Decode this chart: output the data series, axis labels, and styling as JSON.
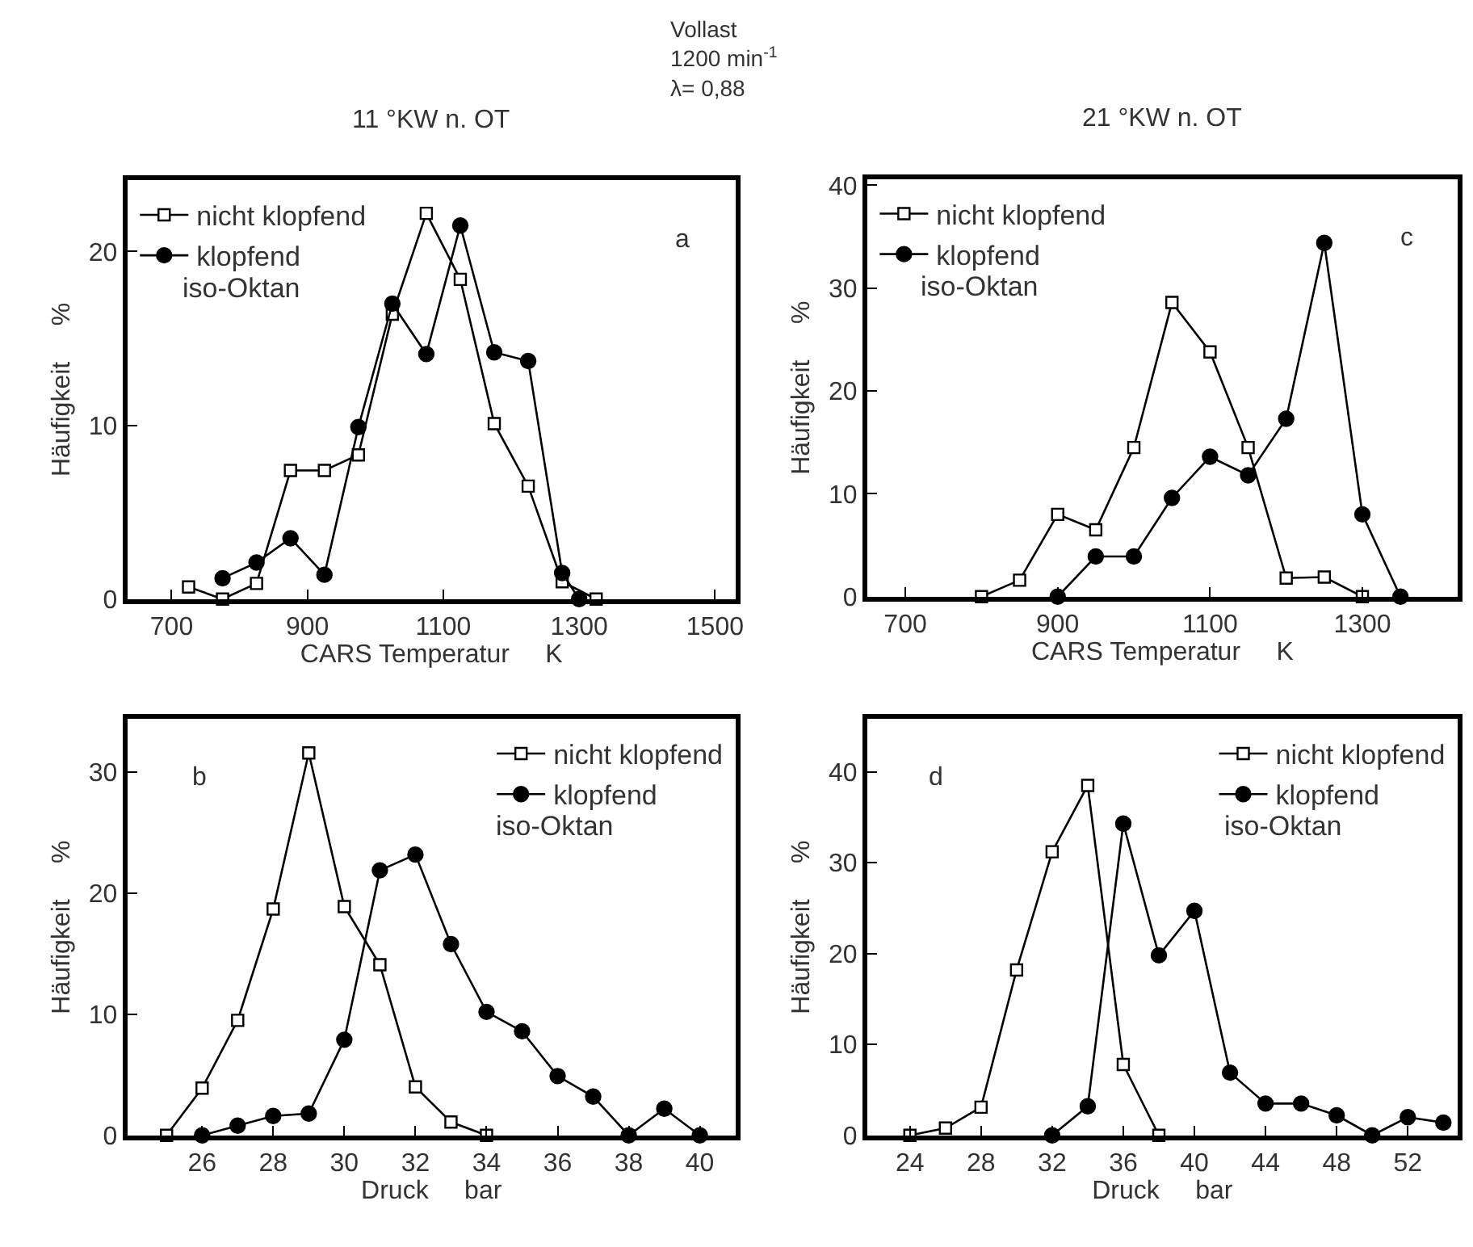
{
  "chart_data": [
    {
      "type": "line",
      "title": "11 °KW n. OT",
      "xlabel": "CARS Temperatur     K",
      "ylabel": "Häufigkeit     %",
      "legend": "top left",
      "annotations": [
        "a",
        "iso-Oktan",
        "Vollast\n1200 min$^{-1}$\nλ= 0,88"
      ],
      "xlim": [
        635,
        1530
      ],
      "ylim": [
        0,
        24.1
      ],
      "xticks": [
        700,
        900,
        1100,
        1300,
        1500
      ],
      "yticks": [
        0,
        10,
        20
      ],
      "series": [
        {
          "name": "nicht klopfend",
          "color": "#000000",
          "marker": "square",
          "x": [
            725,
            775,
            825,
            875,
            925,
            975,
            1025,
            1075,
            1125,
            1175,
            1225,
            1275,
            1325
          ],
          "values": [
            0.7,
            0,
            0.9,
            7.4,
            7.4,
            8.3,
            16.4,
            22.2,
            18.4,
            10.1,
            6.5,
            1.0,
            0
          ]
        },
        {
          "name": "klopfend",
          "color": "#000000",
          "marker": "circle",
          "x": [
            775,
            825,
            875,
            925,
            975,
            1025,
            1075,
            1125,
            1175,
            1225,
            1275,
            1300
          ],
          "values": [
            1.2,
            2.1,
            3.5,
            1.4,
            9.9,
            17.0,
            14.1,
            21.5,
            14.2,
            13.7,
            1.5,
            0
          ]
        }
      ]
    },
    {
      "type": "line",
      "title": "21 °KW n. OT",
      "xlabel": "CARS Temperatur     K",
      "ylabel": "Häufigkeit     %",
      "legend": "top left",
      "annotations": [
        "c",
        "iso-Oktan"
      ],
      "xlim": [
        650,
        1425
      ],
      "ylim": [
        0,
        40.6
      ],
      "xticks": [
        700,
        900,
        1100,
        1300
      ],
      "yticks": [
        0,
        10,
        20,
        30,
        40
      ],
      "series": [
        {
          "name": "nicht klopfend",
          "color": "#000000",
          "marker": "square",
          "x": [
            800,
            850,
            900,
            950,
            1000,
            1050,
            1100,
            1150,
            1200,
            1250,
            1300
          ],
          "values": [
            0,
            1.6,
            8.0,
            6.5,
            14.5,
            28.6,
            23.8,
            14.5,
            1.8,
            1.9,
            0
          ]
        },
        {
          "name": "klopfend",
          "color": "#000000",
          "marker": "circle",
          "x": [
            900,
            950,
            1000,
            1050,
            1100,
            1150,
            1200,
            1250,
            1300,
            1350
          ],
          "values": [
            0,
            3.9,
            3.9,
            9.6,
            13.6,
            11.8,
            17.3,
            34.4,
            8.0,
            0
          ]
        }
      ]
    },
    {
      "type": "line",
      "xlabel": "Druck     bar",
      "ylabel": "Häufigkeit     %",
      "legend": "top right",
      "annotations": [
        "b",
        "iso-Oktan"
      ],
      "xlim": [
        23.9,
        41.0
      ],
      "ylim": [
        0,
        34.4
      ],
      "xticks": [
        26,
        28,
        30,
        32,
        34,
        36,
        38,
        40
      ],
      "yticks": [
        0,
        10,
        20,
        30
      ],
      "series": [
        {
          "name": "nicht klopfend",
          "color": "#000000",
          "marker": "square",
          "x": [
            25,
            26,
            27,
            28,
            29,
            30,
            31,
            32,
            33,
            34
          ],
          "values": [
            0,
            3.9,
            9.5,
            18.7,
            31.6,
            18.9,
            14.1,
            4.0,
            1.1,
            0
          ]
        },
        {
          "name": "klopfend",
          "color": "#000000",
          "marker": "circle",
          "x": [
            26,
            27,
            28,
            29,
            30,
            31,
            32,
            33,
            34,
            35,
            36,
            37,
            38,
            39,
            40
          ],
          "values": [
            0,
            0.8,
            1.6,
            1.8,
            7.9,
            21.9,
            23.2,
            15.8,
            10.2,
            8.6,
            4.9,
            3.2,
            0,
            2.2,
            0
          ]
        }
      ]
    },
    {
      "type": "line",
      "xlabel": "Druck     bar",
      "ylabel": "Häufigkeit     %",
      "legend": "top right",
      "annotations": [
        "d",
        "iso-Oktan"
      ],
      "xlim": [
        21.6,
        54.8
      ],
      "ylim": [
        0,
        45.8
      ],
      "xticks": [
        24,
        28,
        32,
        36,
        40,
        44,
        48,
        52
      ],
      "yticks": [
        0,
        10,
        20,
        30,
        40
      ],
      "series": [
        {
          "name": "nicht klopfend",
          "color": "#000000",
          "marker": "square",
          "x": [
            24,
            26,
            28,
            30,
            32,
            34,
            36,
            38
          ],
          "values": [
            0,
            0.8,
            3.1,
            18.2,
            31.2,
            38.5,
            7.8,
            0
          ]
        },
        {
          "name": "klopfend",
          "color": "#000000",
          "marker": "circle",
          "x": [
            32,
            34,
            36,
            38,
            40,
            42,
            44,
            46,
            48,
            50,
            52,
            54
          ],
          "values": [
            0,
            3.2,
            34.3,
            19.8,
            24.7,
            6.9,
            3.5,
            3.5,
            2.2,
            0,
            2.0,
            1.4
          ]
        }
      ]
    }
  ]
}
